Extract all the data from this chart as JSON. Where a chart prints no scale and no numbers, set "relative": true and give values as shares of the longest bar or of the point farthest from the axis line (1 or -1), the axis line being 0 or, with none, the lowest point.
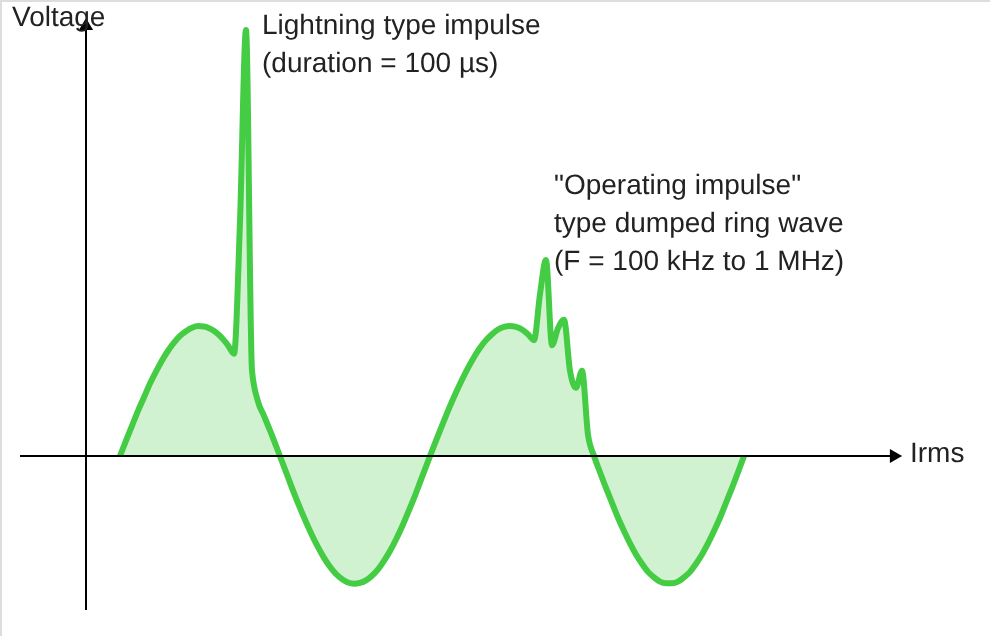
{
  "chart_data": {
    "type": "area",
    "relative": true,
    "tick_labels": false,
    "ylabel": "Voltage",
    "annotations": [
      "Irms",
      "Lightning type impulse\n(duration = 100 µs)",
      "\"Operating impulse\"\ntype dumped ring wave\n(F = 100 kHz to 1 MHz)"
    ],
    "categories": [
      null,
      null,
      null,
      null,
      null,
      null,
      null,
      null,
      null,
      null,
      null,
      null,
      null,
      null,
      null,
      null,
      null,
      null,
      null,
      null,
      null,
      null,
      null,
      null,
      null,
      null,
      null,
      null,
      null,
      null,
      null,
      null,
      null,
      null,
      null,
      null,
      null,
      null,
      null,
      null,
      null,
      null,
      null,
      null,
      null,
      null,
      null,
      null,
      null,
      null,
      null,
      null,
      null,
      null,
      null,
      null,
      null,
      null,
      null,
      null,
      null,
      null,
      null,
      null,
      null,
      null,
      null,
      null,
      null,
      null,
      null,
      null,
      null,
      null,
      null,
      null,
      null,
      null,
      null,
      null,
      null,
      null,
      null,
      null,
      null,
      null,
      null,
      null,
      null,
      null,
      null,
      null,
      null,
      null,
      null,
      null,
      null,
      null,
      null,
      null,
      null,
      null,
      null,
      null,
      null
    ],
    "series": [
      {
        "color": "#44cc44",
        "values": [
          0,
          0.036,
          0.071,
          0.106,
          0.138,
          0.17,
          0.198,
          0.224,
          0.247,
          0.266,
          0.282,
          0.293,
          0.301,
          0.305,
          0.304,
          0.299,
          0.29,
          0.277,
          0.26,
          0.24,
          0.55,
          1,
          0.2,
          0.128,
          0.094,
          0.06,
          0.024,
          -0.013,
          -0.05,
          -0.087,
          -0.122,
          -0.155,
          -0.186,
          -0.214,
          -0.239,
          -0.26,
          -0.277,
          -0.289,
          -0.297,
          -0.3,
          -0.298,
          -0.292,
          -0.281,
          -0.266,
          -0.246,
          -0.223,
          -0.196,
          -0.166,
          -0.133,
          -0.099,
          -0.062,
          -0.025,
          0.012,
          0.048,
          0.083,
          0.117,
          0.149,
          0.179,
          0.207,
          0.232,
          0.254,
          0.272,
          0.286,
          0.297,
          0.303,
          0.305,
          0.303,
          0.297,
          0.286,
          0.272,
          0.38,
          0.46,
          0.26,
          0.3,
          0.32,
          0.2,
          0.16,
          0.2,
          0.05,
          0,
          -0.038,
          -0.075,
          -0.11,
          -0.145,
          -0.176,
          -0.205,
          -0.231,
          -0.253,
          -0.272,
          -0.285,
          -0.295,
          -0.299,
          -0.299,
          -0.295,
          -0.285,
          -0.272,
          -0.253,
          -0.231,
          -0.205,
          -0.176,
          -0.145,
          -0.11,
          -0.075,
          -0.038,
          0
        ]
      }
    ]
  }
}
